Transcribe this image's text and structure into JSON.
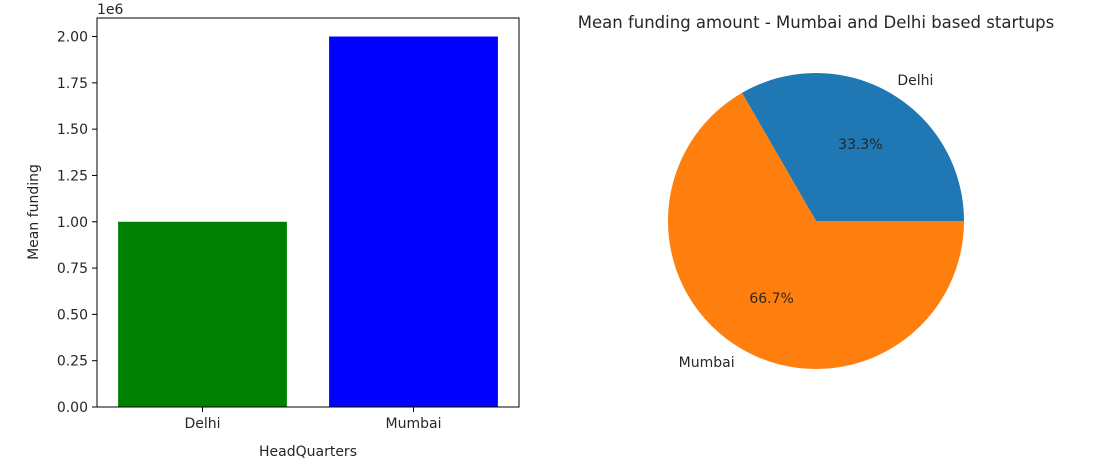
{
  "chart_data": [
    {
      "type": "bar",
      "categories": [
        "Delhi",
        "Mumbai"
      ],
      "values": [
        1000000,
        2000000
      ],
      "colors": [
        "#008000",
        "#0000ff"
      ],
      "xlabel": "HeadQuarters",
      "ylabel": "Mean funding",
      "offset_label": "1e6",
      "ylim": [
        0,
        2100000
      ],
      "yticks": [
        0,
        250000,
        500000,
        750000,
        1000000,
        1250000,
        1500000,
        1750000,
        2000000
      ],
      "ytick_labels": [
        "0.00",
        "0.25",
        "0.50",
        "0.75",
        "1.00",
        "1.25",
        "1.50",
        "1.75",
        "2.00"
      ],
      "grid": false
    },
    {
      "type": "pie",
      "title": "Mean funding amount - Mumbai and Delhi based startups",
      "labels": [
        "Delhi",
        "Mumbai"
      ],
      "values": [
        1000000,
        2000000
      ],
      "percent_labels": [
        "33.3%",
        "66.7%"
      ],
      "colors": [
        "#1f77b4",
        "#ff7f0e"
      ]
    }
  ]
}
